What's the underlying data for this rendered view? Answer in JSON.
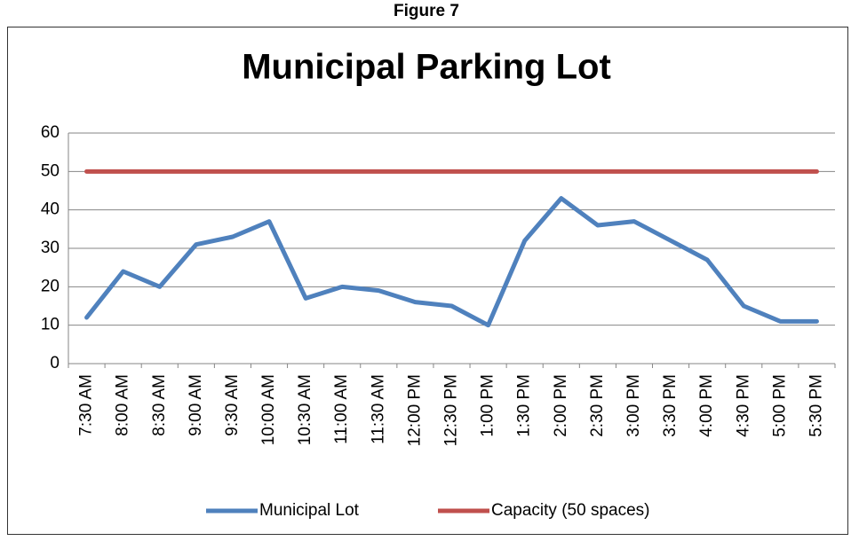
{
  "caption": "Figure 7",
  "chart_data": {
    "type": "line",
    "title": "Municipal Parking Lot",
    "categories": [
      "7:30 AM",
      "8:00 AM",
      "8:30 AM",
      "9:00 AM",
      "9:30 AM",
      "10:00 AM",
      "10:30 AM",
      "11:00 AM",
      "11:30 AM",
      "12:00 PM",
      "12:30 PM",
      "1:00 PM",
      "1:30 PM",
      "2:00 PM",
      "2:30 PM",
      "3:00 PM",
      "3:30 PM",
      "4:00 PM",
      "4:30 PM",
      "5:00 PM",
      "5:30 PM"
    ],
    "series": [
      {
        "name": "Municipal Lot",
        "color": "#4f81bd",
        "values": [
          12,
          24,
          20,
          31,
          33,
          37,
          17,
          20,
          19,
          16,
          15,
          10,
          32,
          43,
          36,
          37,
          32,
          27,
          15,
          11,
          11
        ]
      },
      {
        "name": "Capacity (50 spaces)",
        "color": "#c0504d",
        "values": [
          50,
          50,
          50,
          50,
          50,
          50,
          50,
          50,
          50,
          50,
          50,
          50,
          50,
          50,
          50,
          50,
          50,
          50,
          50,
          50,
          50
        ]
      }
    ],
    "ylim": [
      0,
      60
    ],
    "yticks": [
      0,
      10,
      20,
      30,
      40,
      50,
      60
    ],
    "grid": true,
    "legend": "bottom"
  }
}
